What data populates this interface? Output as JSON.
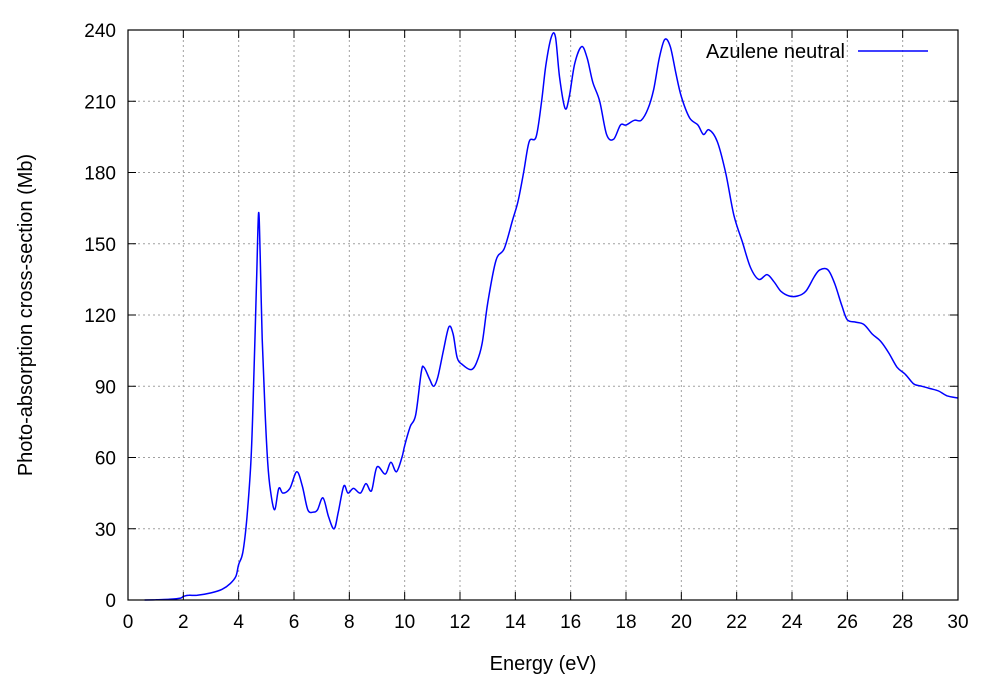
{
  "chart_data": {
    "type": "line",
    "title": "",
    "xlabel": "Energy (eV)",
    "ylabel": "Photo-absorption cross-section (Mb)",
    "xlim": [
      0,
      30
    ],
    "ylim": [
      0,
      240
    ],
    "xticks": [
      0,
      2,
      4,
      6,
      8,
      10,
      12,
      14,
      16,
      18,
      20,
      22,
      24,
      26,
      28,
      30
    ],
    "yticks": [
      0,
      30,
      60,
      90,
      120,
      150,
      180,
      210,
      240
    ],
    "grid": true,
    "legend_position": "top-right",
    "series": [
      {
        "name": "Azulene neutral",
        "color": "#0000ff",
        "points": [
          [
            0.6,
            0
          ],
          [
            1.0,
            0.1
          ],
          [
            1.5,
            0.3
          ],
          [
            1.9,
            0.8
          ],
          [
            2.0,
            1.5
          ],
          [
            2.2,
            2
          ],
          [
            2.5,
            2
          ],
          [
            3.0,
            3
          ],
          [
            3.4,
            4.5
          ],
          [
            3.7,
            7
          ],
          [
            3.9,
            10
          ],
          [
            4.0,
            15
          ],
          [
            4.15,
            20
          ],
          [
            4.3,
            35
          ],
          [
            4.45,
            60
          ],
          [
            4.55,
            95
          ],
          [
            4.65,
            135
          ],
          [
            4.72,
            163
          ],
          [
            4.78,
            145
          ],
          [
            4.85,
            110
          ],
          [
            4.95,
            80
          ],
          [
            5.05,
            58
          ],
          [
            5.15,
            46
          ],
          [
            5.3,
            38
          ],
          [
            5.45,
            47
          ],
          [
            5.6,
            45
          ],
          [
            5.85,
            47
          ],
          [
            6.1,
            54
          ],
          [
            6.3,
            48
          ],
          [
            6.5,
            38
          ],
          [
            6.7,
            37
          ],
          [
            6.85,
            38
          ],
          [
            7.05,
            43
          ],
          [
            7.25,
            35
          ],
          [
            7.45,
            30
          ],
          [
            7.6,
            37
          ],
          [
            7.8,
            48
          ],
          [
            7.95,
            45
          ],
          [
            8.15,
            47
          ],
          [
            8.4,
            45
          ],
          [
            8.6,
            49
          ],
          [
            8.8,
            46
          ],
          [
            9.0,
            56
          ],
          [
            9.3,
            53
          ],
          [
            9.5,
            58
          ],
          [
            9.7,
            54
          ],
          [
            9.9,
            60
          ],
          [
            10.0,
            65
          ],
          [
            10.2,
            73
          ],
          [
            10.4,
            78
          ],
          [
            10.6,
            96
          ],
          [
            10.7,
            98
          ],
          [
            10.9,
            93
          ],
          [
            11.05,
            90
          ],
          [
            11.2,
            94
          ],
          [
            11.4,
            105
          ],
          [
            11.6,
            115
          ],
          [
            11.75,
            112
          ],
          [
            11.9,
            102
          ],
          [
            12.1,
            99
          ],
          [
            12.4,
            97
          ],
          [
            12.6,
            100
          ],
          [
            12.8,
            108
          ],
          [
            13.0,
            125
          ],
          [
            13.3,
            143
          ],
          [
            13.6,
            148
          ],
          [
            13.9,
            160
          ],
          [
            14.1,
            168
          ],
          [
            14.3,
            180
          ],
          [
            14.5,
            193
          ],
          [
            14.75,
            195
          ],
          [
            14.95,
            210
          ],
          [
            15.1,
            225
          ],
          [
            15.3,
            237
          ],
          [
            15.45,
            237
          ],
          [
            15.6,
            220
          ],
          [
            15.8,
            207
          ],
          [
            15.95,
            212
          ],
          [
            16.15,
            226
          ],
          [
            16.4,
            233
          ],
          [
            16.6,
            228
          ],
          [
            16.8,
            218
          ],
          [
            17.05,
            210
          ],
          [
            17.3,
            196
          ],
          [
            17.55,
            194
          ],
          [
            17.8,
            200
          ],
          [
            18.0,
            200
          ],
          [
            18.3,
            202
          ],
          [
            18.55,
            202
          ],
          [
            18.8,
            207
          ],
          [
            19.0,
            215
          ],
          [
            19.2,
            228
          ],
          [
            19.4,
            236
          ],
          [
            19.6,
            233
          ],
          [
            19.8,
            222
          ],
          [
            20.0,
            212
          ],
          [
            20.3,
            203
          ],
          [
            20.6,
            200
          ],
          [
            20.8,
            196
          ],
          [
            21.0,
            198
          ],
          [
            21.3,
            193
          ],
          [
            21.6,
            180
          ],
          [
            21.9,
            162
          ],
          [
            22.2,
            151
          ],
          [
            22.5,
            140
          ],
          [
            22.8,
            135
          ],
          [
            23.1,
            137
          ],
          [
            23.35,
            134
          ],
          [
            23.6,
            130
          ],
          [
            23.9,
            128
          ],
          [
            24.2,
            128
          ],
          [
            24.5,
            130
          ],
          [
            24.8,
            136
          ],
          [
            25.0,
            139
          ],
          [
            25.3,
            139
          ],
          [
            25.55,
            133
          ],
          [
            25.8,
            124
          ],
          [
            26.0,
            118
          ],
          [
            26.3,
            117
          ],
          [
            26.6,
            116
          ],
          [
            26.9,
            112
          ],
          [
            27.2,
            109
          ],
          [
            27.5,
            104
          ],
          [
            27.8,
            98
          ],
          [
            28.1,
            95
          ],
          [
            28.4,
            91
          ],
          [
            28.7,
            90
          ],
          [
            29.0,
            89
          ],
          [
            29.3,
            88
          ],
          [
            29.6,
            86
          ],
          [
            30.0,
            85
          ]
        ]
      }
    ]
  }
}
